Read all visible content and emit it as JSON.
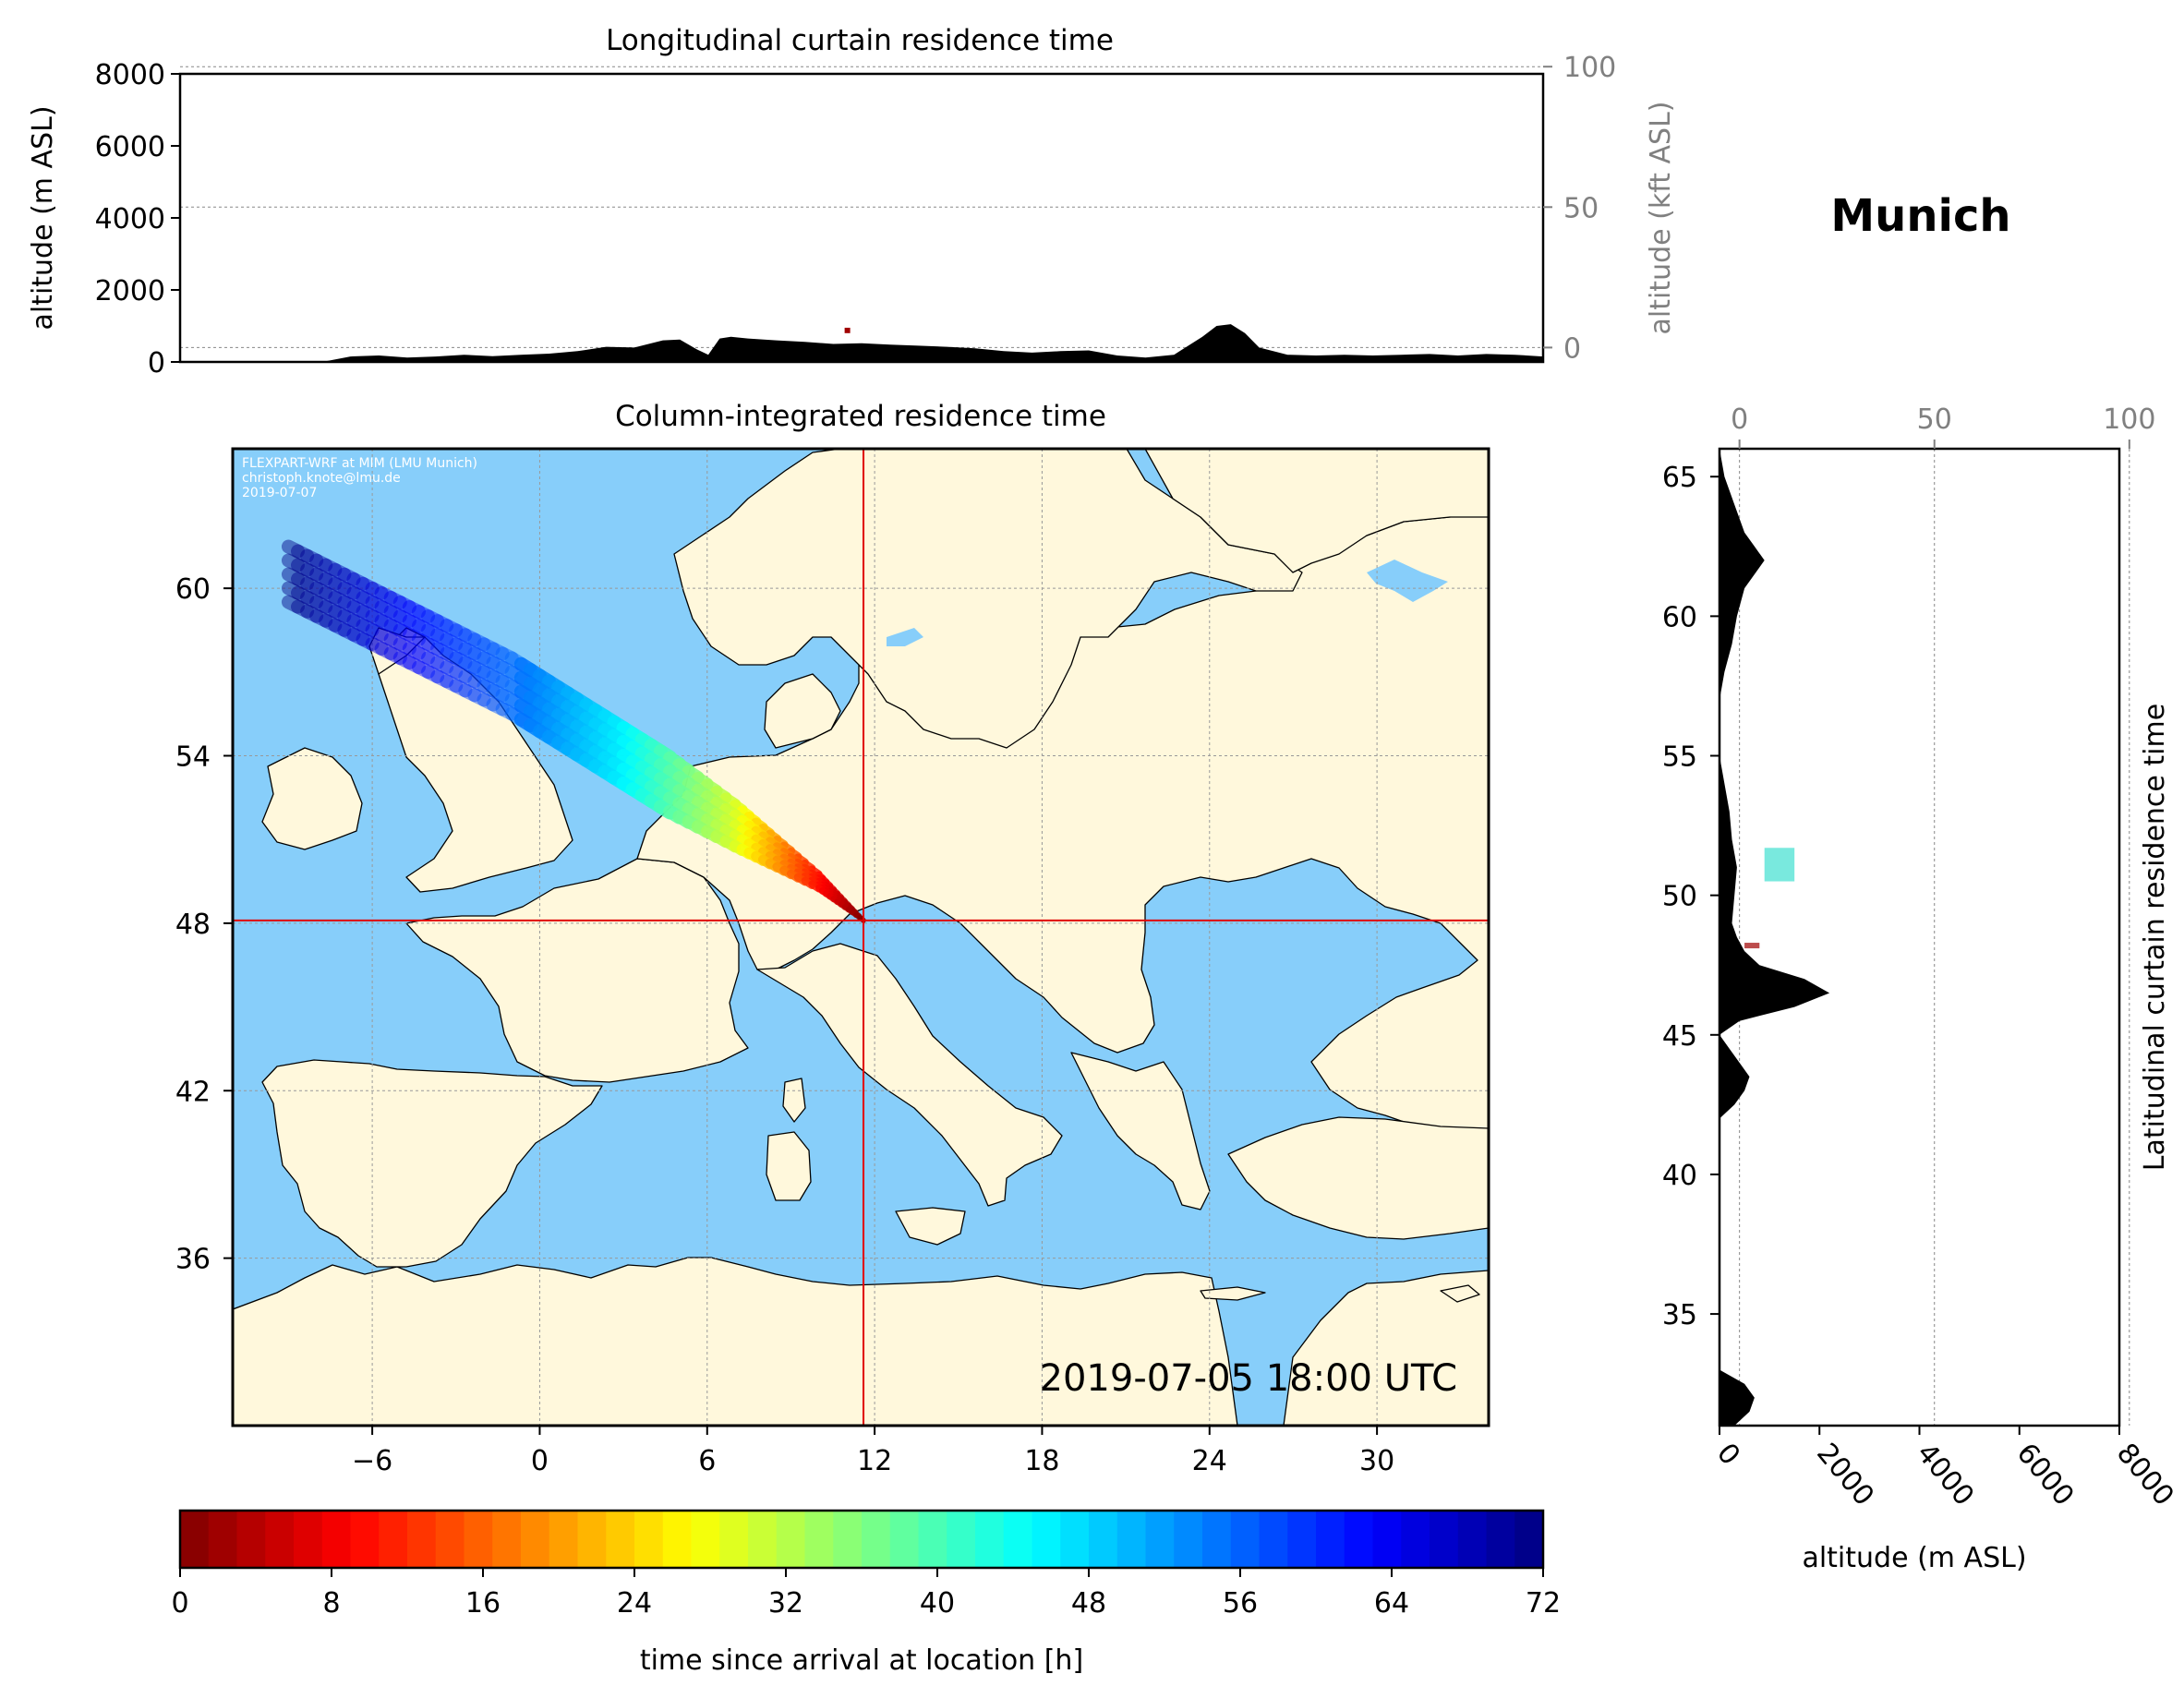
{
  "figure": {
    "location_name": "Munich",
    "timestamp": "2019-07-05 18:00 UTC",
    "credit_lines": [
      "FLEXPART-WRF at MIM (LMU Munich)",
      "christoph.knote@lmu.de",
      "2019-07-07"
    ],
    "colors": {
      "ocean": "#87cefa",
      "land": "#fff8dc",
      "terrain": "#000000",
      "crosshair": "#e00000",
      "lake": "#87cefa"
    }
  },
  "chart_data": [
    {
      "id": "longitudinal_curtain",
      "type": "area",
      "title": "Longitudinal curtain residence time",
      "ylabel": "altitude (m ASL)",
      "ylabel_right": "altitude (kft ASL)",
      "xlim": [
        -12,
        36
      ],
      "ylim": [
        0,
        8000
      ],
      "yticks": [
        "0",
        "2000",
        "4000",
        "6000",
        "8000"
      ],
      "yticks_right": [
        "0",
        "50",
        "100"
      ],
      "grid": true,
      "terrain_profile": {
        "x": [
          -12,
          -7,
          -6,
          -5,
          -4,
          -3,
          -2,
          -1,
          0,
          1,
          2,
          3,
          4,
          5,
          5.6,
          6.2,
          6.6,
          7,
          7.4,
          8,
          9,
          10,
          11,
          12,
          13,
          14,
          15,
          16,
          17,
          18,
          19,
          20,
          21,
          22,
          23,
          24,
          24.5,
          25,
          25.5,
          26,
          27,
          28,
          29,
          30,
          31,
          32,
          33,
          34,
          35,
          36
        ],
        "y": [
          0,
          0,
          150,
          180,
          120,
          150,
          200,
          160,
          200,
          230,
          300,
          420,
          400,
          600,
          620,
          350,
          200,
          650,
          700,
          650,
          600,
          560,
          500,
          520,
          480,
          450,
          420,
          380,
          300,
          260,
          300,
          320,
          180,
          120,
          200,
          700,
          1000,
          1050,
          800,
          400,
          200,
          180,
          200,
          180,
          200,
          220,
          180,
          220,
          200,
          150
        ]
      },
      "plume": {
        "x": 11.5,
        "alt_min": 800,
        "alt_max": 950,
        "color": "#a00000"
      }
    },
    {
      "id": "column_integrated_map",
      "type": "heatmap",
      "title": "Column-integrated residence time",
      "xlim": [
        -11,
        34
      ],
      "ylim": [
        30,
        65
      ],
      "xticks": [
        "−6",
        "0",
        "6",
        "12",
        "18",
        "24",
        "30"
      ],
      "yticks": [
        "36",
        "42",
        "48",
        "54",
        "60"
      ],
      "grid": true,
      "release_location": {
        "lon": 11.6,
        "lat": 48.1
      },
      "trajectory": {
        "lon": [
          -9,
          -5,
          -1,
          3,
          7,
          10,
          11.6
        ],
        "lat": [
          60.5,
          58.5,
          56.5,
          54,
          51.5,
          49.5,
          48.1
        ],
        "hours": [
          72,
          64,
          56,
          46,
          30,
          10,
          0
        ]
      }
    },
    {
      "id": "latitudinal_curtain",
      "type": "area",
      "title": "Latitudinal curtain residence time",
      "xlabel": "altitude (m ASL)",
      "xlim": [
        0,
        8000
      ],
      "ylim": [
        31,
        66
      ],
      "xticks": [
        "0",
        "2000",
        "4000",
        "6000",
        "8000"
      ],
      "xticks_top": [
        "0",
        "50",
        "100"
      ],
      "yticks": [
        "35",
        "40",
        "45",
        "50",
        "55",
        "60",
        "65"
      ],
      "grid": true,
      "terrain_profile": {
        "lat": [
          31,
          31.5,
          32,
          32.5,
          33,
          34,
          36,
          38,
          40,
          42,
          42.5,
          43,
          43.5,
          44,
          44.5,
          45,
          45.5,
          46,
          46.5,
          47,
          47.5,
          48,
          48.5,
          49,
          50,
          51,
          52,
          53,
          54,
          55,
          56,
          57,
          58,
          59,
          60,
          61,
          62,
          62.5,
          63,
          64,
          65,
          66
        ],
        "alt": [
          300,
          600,
          700,
          500,
          0,
          0,
          0,
          0,
          0,
          0,
          300,
          500,
          600,
          400,
          200,
          0,
          400,
          1500,
          2200,
          1700,
          800,
          500,
          350,
          250,
          300,
          350,
          250,
          200,
          100,
          0,
          0,
          0,
          100,
          250,
          350,
          500,
          900,
          700,
          500,
          300,
          100,
          0
        ]
      },
      "plume": [
        {
          "lat_min": 50.5,
          "lat_max": 51.7,
          "alt_min": 900,
          "alt_max": 1500,
          "color": "#40e0d0"
        },
        {
          "lat_min": 48.1,
          "lat_max": 48.3,
          "alt_min": 500,
          "alt_max": 800,
          "color": "#a00000"
        }
      ]
    }
  ],
  "colorbar": {
    "label": "time since arrival at location [h]",
    "vmin": 0,
    "vmax": 72,
    "ticks": [
      "0",
      "8",
      "16",
      "24",
      "32",
      "40",
      "48",
      "56",
      "64",
      "72"
    ],
    "colormap": "jet_r"
  }
}
